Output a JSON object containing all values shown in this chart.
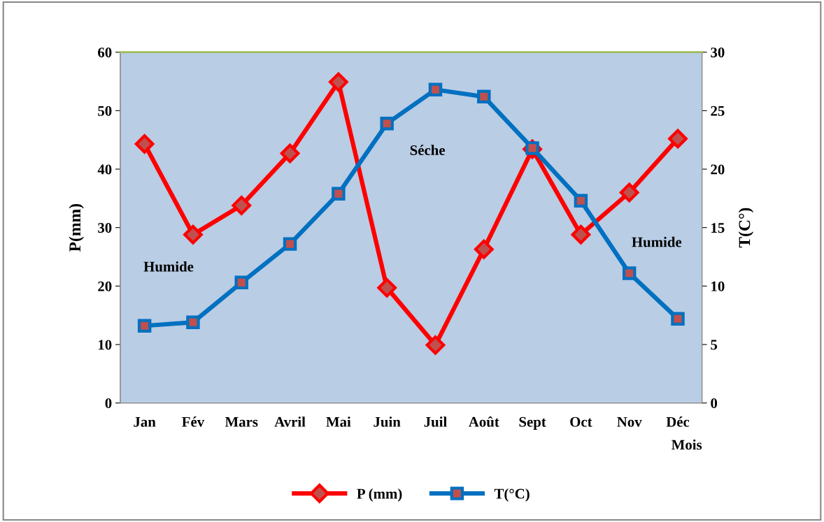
{
  "chart_data": {
    "type": "line",
    "xlabel": "Mois",
    "ylabel": "P(mm)",
    "y2label": "T(C°)",
    "categories": [
      "Jan",
      "Fév",
      "Mars",
      "Avril",
      "Mai",
      "Juin",
      "Juil",
      "Août",
      "Sept",
      "Oct",
      "Nov",
      "Déc"
    ],
    "series": [
      {
        "name": "P (mm)",
        "color": "#ff0000",
        "marker": "diamond",
        "values": [
          44.3,
          28.8,
          33.8,
          42.7,
          54.9,
          19.7,
          9.9,
          26.3,
          43.4,
          28.8,
          36.0,
          45.2
        ]
      },
      {
        "name": "T(°C)",
        "color": "#0070c0",
        "marker": "square",
        "axis": "y2",
        "values": [
          6.6,
          6.9,
          10.3,
          13.6,
          17.9,
          23.9,
          26.8,
          26.2,
          21.8,
          17.3,
          11.1,
          7.2
        ]
      }
    ],
    "ylim": [
      0,
      60
    ],
    "yticks": [
      0,
      10,
      20,
      30,
      40,
      50,
      60
    ],
    "y2lim": [
      0,
      30
    ],
    "y2ticks": [
      0,
      5,
      10,
      15,
      20,
      25,
      30
    ],
    "annotations": [
      "Humide",
      "Séche",
      "Humide"
    ],
    "grid": false,
    "legend": "bottom",
    "line_style": "solid"
  }
}
